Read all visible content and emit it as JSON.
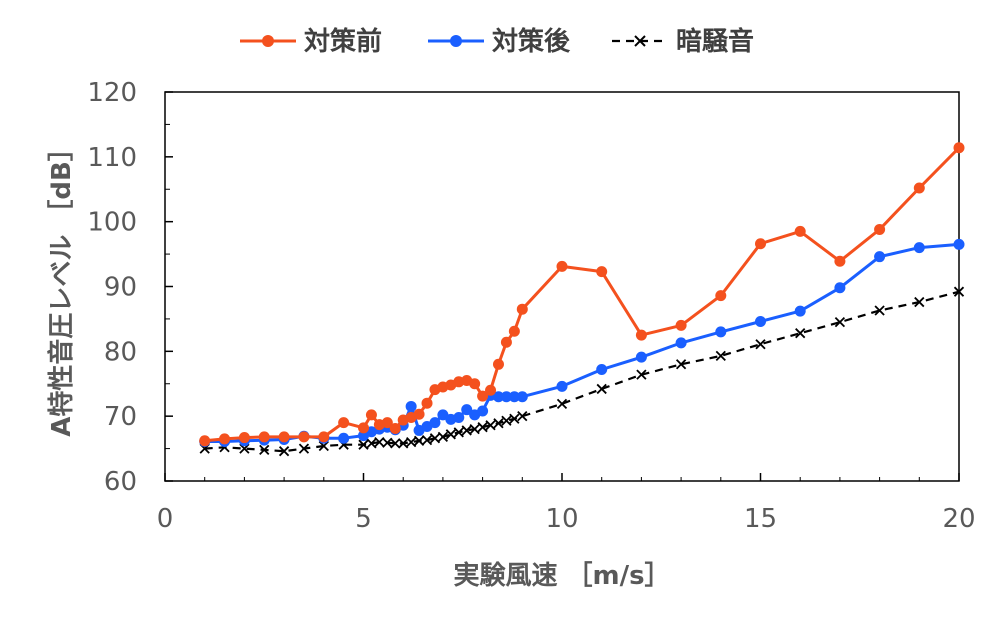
{
  "chart_data": {
    "type": "line",
    "title": "",
    "xlabel": "実験風速 ［m/s］",
    "ylabel": "A特性音圧レベル ［dB］",
    "xlim": [
      0,
      20
    ],
    "ylim": [
      60,
      120
    ],
    "xticks": [
      0,
      5,
      10,
      15,
      20
    ],
    "yticks": [
      60,
      70,
      80,
      90,
      100,
      110,
      120
    ],
    "legend_position": "top",
    "series": [
      {
        "name": "対策前",
        "color": "#F4511E",
        "marker": "circle",
        "dash": "solid",
        "x": [
          1,
          1.5,
          2,
          2.5,
          3,
          3.5,
          4,
          4.5,
          5,
          5.2,
          5.4,
          5.6,
          5.8,
          6,
          6.2,
          6.4,
          6.6,
          6.8,
          7,
          7.2,
          7.4,
          7.6,
          7.8,
          8,
          8.2,
          8.4,
          8.6,
          8.8,
          9,
          10,
          11,
          12,
          13,
          14,
          15,
          16,
          17,
          18,
          19,
          20
        ],
        "y": [
          66.2,
          66.5,
          66.7,
          66.8,
          66.8,
          66.8,
          66.8,
          69,
          68.2,
          70.2,
          68.7,
          69,
          68.1,
          69.4,
          69.8,
          70.3,
          72,
          74.1,
          74.5,
          74.8,
          75.3,
          75.5,
          75,
          73.1,
          74,
          78,
          81.4,
          83.1,
          86.5,
          93.1,
          92.3,
          82.5,
          84,
          88.6,
          96.6,
          98.5,
          93.9,
          98.8,
          105.2,
          111.4
        ]
      },
      {
        "name": "対策後",
        "color": "#1A5FFF",
        "marker": "circle",
        "dash": "solid",
        "x": [
          1,
          1.5,
          2,
          2.5,
          3,
          3.5,
          4,
          4.5,
          5,
          5.2,
          5.4,
          5.6,
          5.8,
          6,
          6.2,
          6.4,
          6.6,
          6.8,
          7,
          7.2,
          7.4,
          7.6,
          7.8,
          8,
          8.2,
          8.4,
          8.6,
          8.8,
          9,
          10,
          11,
          12,
          13,
          14,
          15,
          16,
          17,
          18,
          19,
          20
        ],
        "y": [
          66.1,
          66.1,
          66.2,
          66.3,
          66.4,
          66.9,
          66.6,
          66.6,
          67,
          67.6,
          68,
          68.3,
          67.9,
          68.6,
          71.5,
          67.8,
          68.4,
          69,
          70.2,
          69.5,
          69.8,
          71,
          70.2,
          70.8,
          73.2,
          73,
          73,
          73,
          73,
          74.6,
          77.2,
          79.1,
          81.3,
          83,
          84.6,
          86.2,
          89.8,
          94.6,
          96,
          96.5
        ]
      },
      {
        "name": "暗騒音",
        "color": "#000000",
        "marker": "x",
        "dash": "dashed",
        "x": [
          1,
          1.5,
          2,
          2.5,
          3,
          3.5,
          4,
          4.5,
          5,
          5.2,
          5.4,
          5.6,
          5.8,
          6,
          6.2,
          6.4,
          6.6,
          6.8,
          7,
          7.2,
          7.4,
          7.6,
          7.8,
          8,
          8.2,
          8.4,
          8.6,
          8.8,
          9,
          10,
          11,
          12,
          13,
          14,
          15,
          16,
          17,
          18,
          19,
          20
        ],
        "y": [
          65,
          65.2,
          65,
          64.8,
          64.6,
          65,
          65.4,
          65.6,
          65.6,
          65.8,
          66,
          65.9,
          65.8,
          65.8,
          66,
          66.2,
          66.3,
          66.6,
          66.8,
          67.2,
          67.5,
          67.8,
          68,
          68.3,
          68.6,
          68.9,
          69.3,
          69.6,
          70,
          71.9,
          74.2,
          76.4,
          78,
          79.3,
          81.1,
          82.8,
          84.5,
          86.3,
          87.6,
          89.2
        ]
      }
    ]
  }
}
